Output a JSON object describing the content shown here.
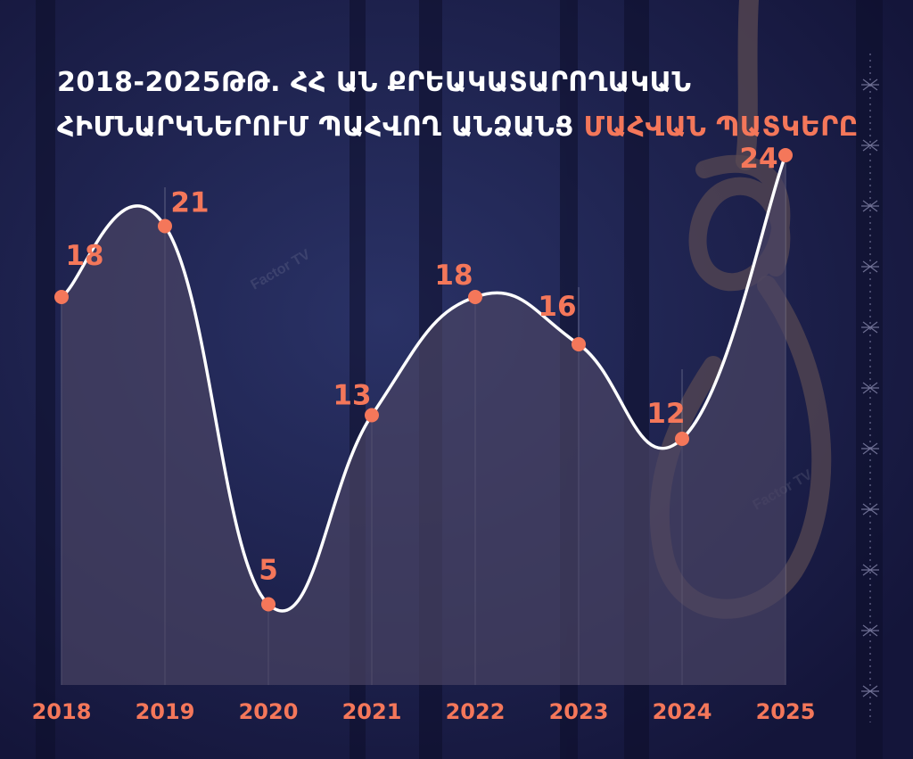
{
  "title": {
    "line1": "2018-2025ԹԹ. ՀՀ ԱՆ ՔՐԵԱԿԱՏԱՐՈՂԱԿԱՆ",
    "line2_white": "ՀԻՄՆԱՐԿՆԵՐՈՒՄ ՊԱՀՎՈՂ ԱՆՁԱՆՑ",
    "line2_accent": "ՄԱՀՎԱՆ ՊԱՏԿԵՐԸ"
  },
  "watermarks": [
    "Factor TV",
    "Factor TV"
  ],
  "colors": {
    "background": "#15163a",
    "accent": "#f4775a",
    "line": "#ffffff",
    "area_fill": "#4b4664"
  },
  "chart_data": {
    "type": "area",
    "title": "2018-2025ԹԹ. ՀՀ ԱՆ ՔՐԵԱԿԱՏԱՐՈՂԱԿԱՆ ՀԻՄՆԱՐԿՆԵՐՈՒՄ ՊԱՀՎՈՂ ԱՆՁԱՆՑ ՄԱՀՎԱՆ ՊԱՏԿԵՐԸ",
    "categories": [
      "2018",
      "2019",
      "2020",
      "2021",
      "2022",
      "2023",
      "2024",
      "2025"
    ],
    "values": [
      18,
      21,
      5,
      13,
      18,
      16,
      12,
      24
    ],
    "data_labels": true,
    "grid": "vertical lines",
    "legend": "none",
    "xlabel": "",
    "ylabel": ""
  }
}
